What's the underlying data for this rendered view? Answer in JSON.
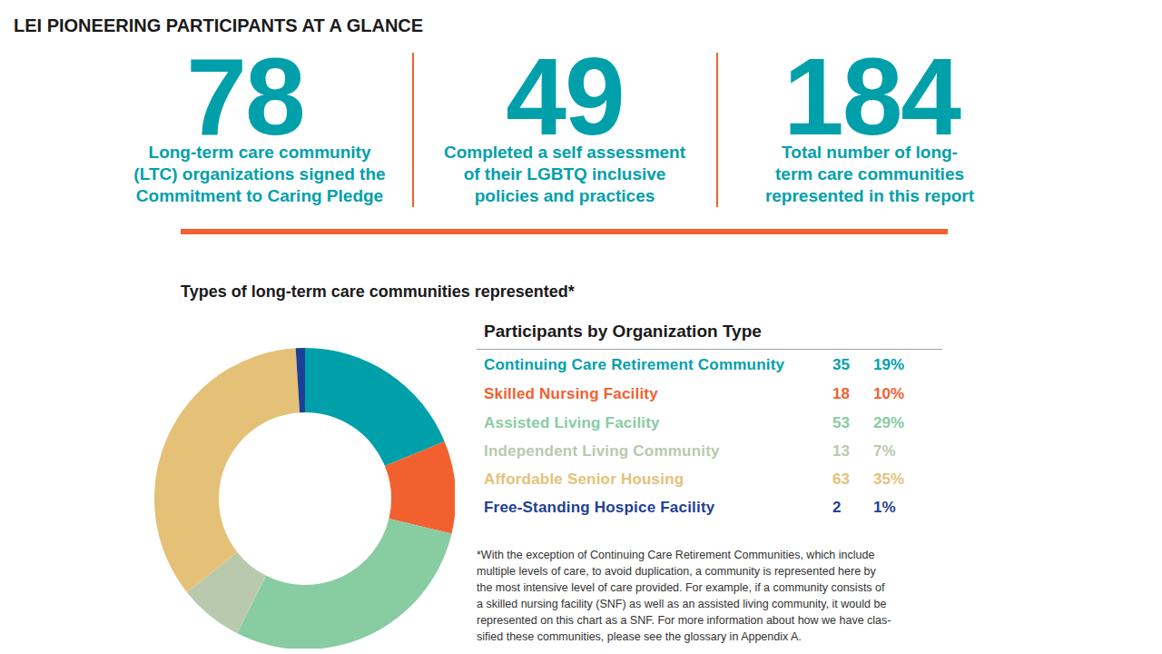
{
  "title": "LEI PIONEERING PARTICIPANTS AT A GLANCE",
  "stats": [
    {
      "value": 78,
      "label_lines": [
        "Long-term care community",
        "(LTC) organizations signed the",
        "Commitment to Caring Pledge"
      ]
    },
    {
      "value": 49,
      "label_lines": [
        "Completed a self assessment",
        "of their LGBTQ inclusive",
        "policies and practices"
      ]
    },
    {
      "value": 184,
      "label_lines": [
        "Total number of long-",
        "term care communities",
        "represented in this report"
      ]
    }
  ],
  "chart_data": {
    "type": "pie",
    "title": "Types of long-term care communities represented*",
    "table_title": "Participants by Organization Type",
    "categories": [
      "Continuing Care Retirement Community",
      "Skilled Nursing Facility",
      "Assisted Living Facility",
      "Independent Living Community",
      "Affordable Senior Housing",
      "Free-Standing Hospice Facility"
    ],
    "values": [
      19,
      10,
      29,
      7,
      35,
      1
    ],
    "value_labels": [
      "19%",
      "10%",
      "29%",
      "7%",
      "35%",
      "1%"
    ],
    "counts": [
      35,
      18,
      53,
      13,
      63,
      2
    ],
    "colors": [
      "#00a0ab",
      "#f26030",
      "#88cca2",
      "#b9c9ad",
      "#e5c177",
      "#1e3f96"
    ]
  },
  "footnote_lines": [
    "*With the exception of Continuing Care Retirement Communities, which include",
    "multiple levels of care, to avoid duplication, a community is represented here by",
    "the most intensive level of care provided. For example, if a community consists of",
    "a skilled nursing facility (SNF) as well as an assisted living community, it would be",
    "represented on this chart as a SNF. For more information about how we have clas-",
    "sified these communities, please see the glossary in Appendix A."
  ]
}
